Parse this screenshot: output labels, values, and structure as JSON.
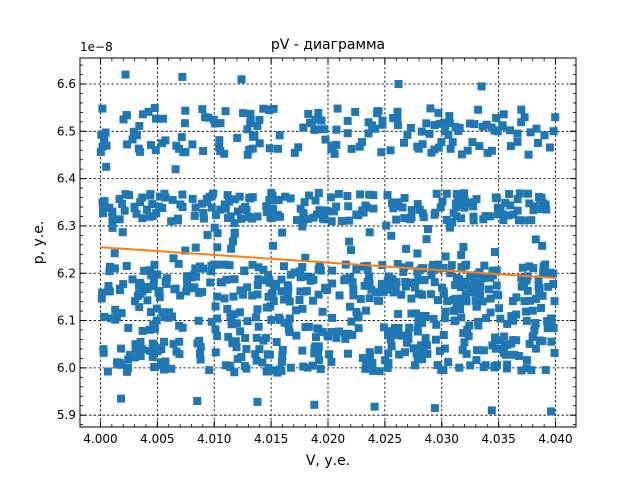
{
  "chart_data": {
    "type": "scatter",
    "title": "pV - диаграмма",
    "xlabel": "V, у.е.",
    "ylabel": "p, у.е.",
    "y_offset_label": "1e−8",
    "y_scale": 1e-08,
    "xlim": [
      3.9982,
      4.0418
    ],
    "ylim": [
      5.875,
      6.655
    ],
    "x_ticks": [
      4.0,
      4.005,
      4.01,
      4.015,
      4.02,
      4.025,
      4.03,
      4.035,
      4.04
    ],
    "x_tick_labels": [
      "4.000",
      "4.005",
      "4.010",
      "4.015",
      "4.020",
      "4.025",
      "4.030",
      "4.035",
      "4.040"
    ],
    "y_ticks": [
      5.9,
      6.0,
      6.1,
      6.2,
      6.3,
      6.4,
      6.5,
      6.6
    ],
    "y_tick_labels": [
      "5.9",
      "6.0",
      "6.1",
      "6.2",
      "6.3",
      "6.4",
      "6.5",
      "6.6"
    ],
    "grid": true,
    "grid_style": "dashed",
    "legend": "none",
    "colors": {
      "points": "#1f77b4",
      "fit_line": "#ff7f0e",
      "grid": "#000000"
    },
    "series": [
      {
        "kind": "scatter-squares",
        "x_range": [
          4.0,
          4.04
        ],
        "approx_point_count": 1000,
        "y_bands": [
          {
            "center": 6.5,
            "spread": 0.05,
            "fraction": 0.17
          },
          {
            "center": 6.34,
            "spread": 0.03,
            "fraction": 0.22
          },
          {
            "center": 6.18,
            "spread": 0.04,
            "fraction": 0.24
          },
          {
            "center": 6.06,
            "spread": 0.07,
            "fraction": 0.3
          },
          {
            "center": 6.24,
            "spread": 0.1,
            "fraction": 0.07
          }
        ],
        "outliers": [
          {
            "x": 4.0022,
            "y": 6.62
          },
          {
            "x": 4.0072,
            "y": 6.615
          },
          {
            "x": 4.0124,
            "y": 6.61
          },
          {
            "x": 4.0262,
            "y": 6.6
          },
          {
            "x": 4.0335,
            "y": 6.595
          },
          {
            "x": 4.0066,
            "y": 6.42
          },
          {
            "x": 4.0005,
            "y": 6.425
          },
          {
            "x": 4.0018,
            "y": 5.935
          },
          {
            "x": 4.0085,
            "y": 5.93
          },
          {
            "x": 4.0138,
            "y": 5.928
          },
          {
            "x": 4.0188,
            "y": 5.922
          },
          {
            "x": 4.0241,
            "y": 5.918
          },
          {
            "x": 4.0294,
            "y": 5.915
          },
          {
            "x": 4.0344,
            "y": 5.91
          },
          {
            "x": 4.0396,
            "y": 5.908
          }
        ]
      },
      {
        "kind": "fit-line",
        "x": [
          4.0,
          4.04
        ],
        "y": [
          6.255,
          6.19
        ]
      }
    ]
  }
}
